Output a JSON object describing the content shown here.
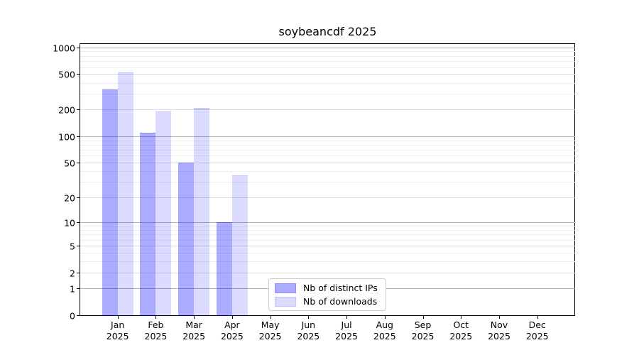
{
  "figure": {
    "background": "#ffffff"
  },
  "chart_data": {
    "type": "bar",
    "title": "soybeancdf 2025",
    "categories": [
      {
        "month": "Jan",
        "year": "2025"
      },
      {
        "month": "Feb",
        "year": "2025"
      },
      {
        "month": "Mar",
        "year": "2025"
      },
      {
        "month": "Apr",
        "year": "2025"
      },
      {
        "month": "May",
        "year": "2025"
      },
      {
        "month": "Jun",
        "year": "2025"
      },
      {
        "month": "Jul",
        "year": "2025"
      },
      {
        "month": "Aug",
        "year": "2025"
      },
      {
        "month": "Sep",
        "year": "2025"
      },
      {
        "month": "Oct",
        "year": "2025"
      },
      {
        "month": "Nov",
        "year": "2025"
      },
      {
        "month": "Dec",
        "year": "2025"
      }
    ],
    "series": [
      {
        "name": "Nb of distinct IPs",
        "color": "rgba(0,0,255,0.33)",
        "edge_color": "rgba(0,0,255,0.18)",
        "values": [
          335,
          110,
          50,
          10,
          0,
          0,
          0,
          0,
          0,
          0,
          0,
          0
        ]
      },
      {
        "name": "Nb of downloads",
        "color": "rgba(0,0,255,0.14)",
        "edge_color": "rgba(0,0,255,0.10)",
        "values": [
          520,
          190,
          210,
          36,
          0,
          0,
          0,
          0,
          0,
          0,
          0,
          0
        ]
      }
    ],
    "yscale": "log10(1+v)",
    "ylim": [
      0,
      1100
    ],
    "yticks": [
      1000,
      500,
      200,
      100,
      50,
      20,
      10,
      5,
      2,
      1,
      0
    ],
    "minor_yticks": [
      900,
      800,
      700,
      600,
      400,
      300,
      90,
      80,
      70,
      60,
      40,
      30,
      9,
      8,
      7,
      6,
      4,
      3
    ],
    "grid": {
      "decade_line_color": "#b3b3b3",
      "major_line_color": "#dbdbdb",
      "minor_line_color": "#ededed"
    },
    "legend_position": "lower center-left"
  }
}
